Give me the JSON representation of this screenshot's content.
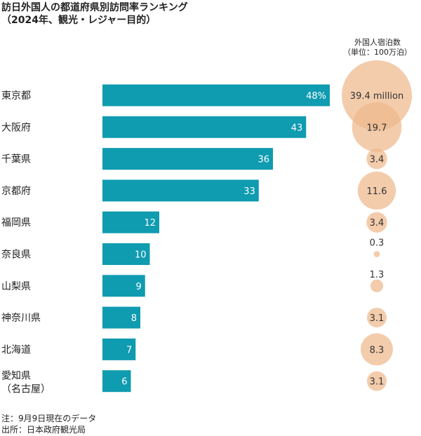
{
  "title": "訪日外国人の都道府県別訪問率ランキング",
  "subtitle": "（2024年、観光・レジャー目的）",
  "bubble_header": {
    "line1": "外国人宿泊数",
    "line2": "（単位：100万泊）"
  },
  "notes": {
    "note": "注：9月9日現在のデータ",
    "source": "出所：日本政府観光局"
  },
  "colors": {
    "bar": "#0f9bb0",
    "bubble": "#efb88c",
    "bubble_text": "#333333",
    "bar_text": "#ffffff"
  },
  "chart_data": {
    "type": "bar",
    "orientation": "horizontal",
    "categories": [
      "東京都",
      "大阪府",
      "千葉県",
      "京都府",
      "福岡県",
      "奈良県",
      "山梨県",
      "神奈川県",
      "北海道",
      "愛知県"
    ],
    "category_sublabels": [
      "",
      "",
      "",
      "",
      "",
      "",
      "",
      "",
      "",
      "（名古屋）"
    ],
    "values": [
      48,
      43,
      36,
      33,
      12,
      10,
      9,
      8,
      7,
      6
    ],
    "value_labels": [
      "48%",
      "43",
      "36",
      "33",
      "12",
      "10",
      "9",
      "8",
      "7",
      "6"
    ],
    "bubble_series": {
      "values": [
        39.4,
        19.7,
        3.4,
        11.6,
        3.4,
        0.3,
        1.3,
        3.1,
        8.3,
        3.1
      ],
      "labels": [
        "39.4 million",
        "19.7",
        "3.4",
        "11.6",
        "3.4",
        "0.3",
        "1.3",
        "3.1",
        "8.3",
        "3.1"
      ]
    },
    "xlim": [
      0,
      48
    ],
    "grid": false,
    "legend": "none"
  }
}
